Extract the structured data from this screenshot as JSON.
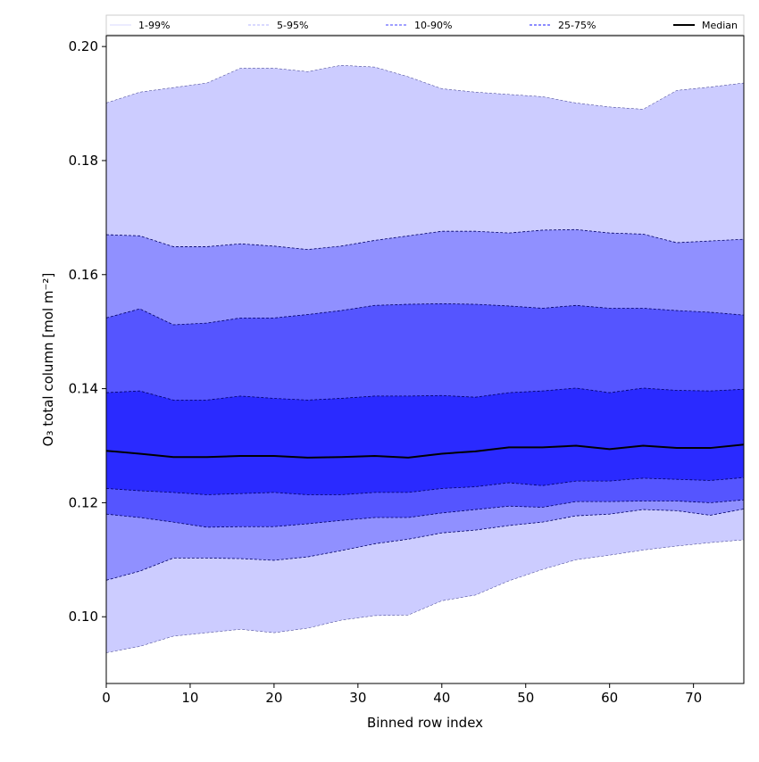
{
  "chart_data": {
    "type": "area",
    "xlabel": "Binned row index",
    "ylabel": "O₃ total column [mol m⁻²]",
    "xlim": [
      0,
      76
    ],
    "ylim": [
      0.0883,
      0.2019
    ],
    "xticks": [
      0,
      10,
      20,
      30,
      40,
      50,
      60,
      70
    ],
    "yticks": [
      0.1,
      0.12,
      0.14,
      0.16,
      0.18,
      0.2
    ],
    "ytick_labels": [
      "0.10",
      "0.12",
      "0.14",
      "0.16",
      "0.18",
      "0.20"
    ],
    "legend_position": "top (above axes)",
    "x": [
      0,
      4,
      8,
      12,
      16,
      20,
      24,
      28,
      32,
      36,
      40,
      44,
      48,
      52,
      56,
      60,
      64,
      68,
      72,
      76
    ],
    "bands": [
      {
        "name": "1-99%",
        "color": "#ccccff",
        "legend_color": "#ccccff",
        "lower": [
          0.0937,
          0.0948,
          0.0966,
          0.0972,
          0.0978,
          0.0972,
          0.098,
          0.0994,
          0.1002,
          0.1003,
          0.1028,
          0.1038,
          0.1063,
          0.1083,
          0.11,
          0.1108,
          0.1117,
          0.1124,
          0.113,
          0.1135
        ],
        "upper": [
          0.1901,
          0.192,
          0.1928,
          0.1936,
          0.1962,
          0.1962,
          0.1956,
          0.1967,
          0.1964,
          0.1947,
          0.1926,
          0.192,
          0.1916,
          0.1912,
          0.1901,
          0.1894,
          0.189,
          0.1923,
          0.1929,
          0.1936
        ]
      },
      {
        "name": "5-95%",
        "color": "#9090ff",
        "legend_color": "#9a9aff",
        "lower": [
          0.1064,
          0.108,
          0.1103,
          0.1103,
          0.1102,
          0.1099,
          0.1105,
          0.1116,
          0.1128,
          0.1136,
          0.1147,
          0.1152,
          0.116,
          0.1166,
          0.1177,
          0.118,
          0.1188,
          0.1186,
          0.1178,
          0.1189
        ],
        "upper": [
          0.167,
          0.1668,
          0.1649,
          0.1649,
          0.1654,
          0.165,
          0.1644,
          0.165,
          0.166,
          0.1668,
          0.1676,
          0.1676,
          0.1673,
          0.1678,
          0.1679,
          0.1673,
          0.1671,
          0.1656,
          0.1659,
          0.1662
        ]
      },
      {
        "name": "10-90%",
        "color": "#5555ff",
        "legend_color": "#8080ff",
        "lower": [
          0.118,
          0.1174,
          0.1166,
          0.1157,
          0.1158,
          0.1158,
          0.1163,
          0.1169,
          0.1174,
          0.1174,
          0.1182,
          0.1188,
          0.1194,
          0.1192,
          0.1202,
          0.1202,
          0.1203,
          0.1203,
          0.12,
          0.1205
        ],
        "upper": [
          0.1524,
          0.154,
          0.1512,
          0.1515,
          0.1524,
          0.1524,
          0.153,
          0.1537,
          0.1546,
          0.1548,
          0.1549,
          0.1548,
          0.1545,
          0.1541,
          0.1546,
          0.1541,
          0.1541,
          0.1537,
          0.1534,
          0.1529
        ]
      },
      {
        "name": "25-75%",
        "color": "#2a2aff",
        "legend_color": "#6666ff",
        "lower": [
          0.1225,
          0.1221,
          0.1218,
          0.1214,
          0.1216,
          0.1218,
          0.1214,
          0.1214,
          0.1218,
          0.1218,
          0.1225,
          0.1228,
          0.1235,
          0.123,
          0.1238,
          0.1238,
          0.1243,
          0.1241,
          0.1239,
          0.1244
        ],
        "upper": [
          0.1393,
          0.1396,
          0.138,
          0.138,
          0.1387,
          0.1383,
          0.138,
          0.1383,
          0.1387,
          0.1387,
          0.1388,
          0.1385,
          0.1393,
          0.1396,
          0.1401,
          0.1393,
          0.1401,
          0.1397,
          0.1396,
          0.1399
        ]
      }
    ],
    "median": {
      "name": "Median",
      "color": "#000000",
      "values": [
        0.1291,
        0.1286,
        0.128,
        0.128,
        0.1282,
        0.1282,
        0.1279,
        0.128,
        0.1282,
        0.1279,
        0.1286,
        0.129,
        0.1297,
        0.1297,
        0.13,
        0.1294,
        0.13,
        0.1296,
        0.1296,
        0.1302
      ]
    }
  }
}
